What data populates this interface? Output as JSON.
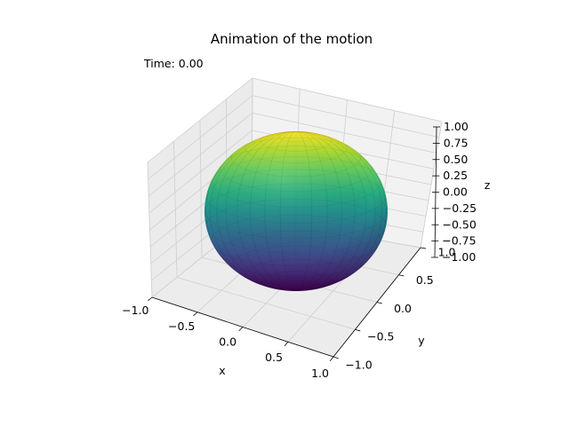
{
  "title": "Animation of the motion",
  "time_text": "Time: 0.00",
  "chart_data": {
    "type": "surface3d",
    "title": "Animation of the motion",
    "annotation": "Time: 0.00",
    "surface": "unit sphere",
    "colormap": "viridis (by z)",
    "center": [
      0,
      0,
      0
    ],
    "radius": 1.0,
    "xlabel": "x",
    "ylabel": "y",
    "zlabel": "z",
    "xlim": [
      -1.0,
      1.0
    ],
    "ylim": [
      -1.0,
      1.0
    ],
    "zlim": [
      -1.0,
      1.0
    ],
    "x_ticks": [
      "−1.0",
      "−0.5",
      "0.0",
      "0.5",
      "1.0"
    ],
    "y_ticks": [
      "−1.0",
      "−0.5",
      "0.0",
      "0.5",
      "1.0"
    ],
    "z_ticks": [
      "−1.00",
      "−0.75",
      "−0.50",
      "−0.25",
      "0.00",
      "0.25",
      "0.50",
      "0.75",
      "1.00"
    ],
    "grid": true
  }
}
